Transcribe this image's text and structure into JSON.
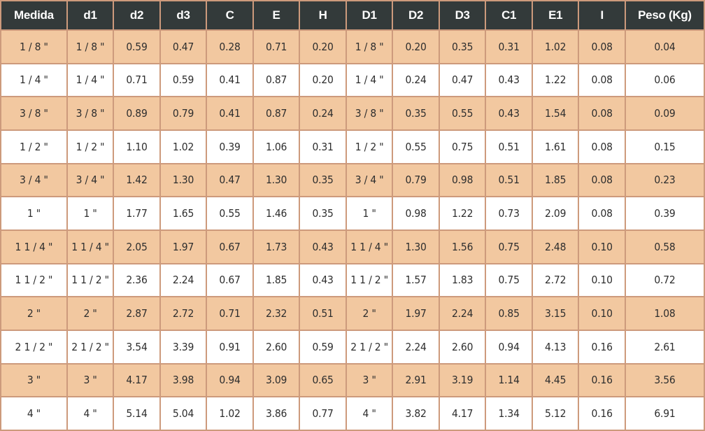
{
  "table": {
    "headers": [
      "Medida",
      "d1",
      "d2",
      "d3",
      "C",
      "E",
      "H",
      "D1",
      "D2",
      "D3",
      "C1",
      "E1",
      "I",
      "Peso (Kg)"
    ],
    "rows": [
      [
        "1 / 8 \"",
        "1 / 8 \"",
        "0.59",
        "0.47",
        "0.28",
        "0.71",
        "0.20",
        "1 / 8 \"",
        "0.20",
        "0.35",
        "0.31",
        "1.02",
        "0.08",
        "0.04"
      ],
      [
        "1 / 4 \"",
        "1 / 4 \"",
        "0.71",
        "0.59",
        "0.41",
        "0.87",
        "0.20",
        "1 / 4 \"",
        "0.24",
        "0.47",
        "0.43",
        "1.22",
        "0.08",
        "0.06"
      ],
      [
        "3 / 8 \"",
        "3 / 8 \"",
        "0.89",
        "0.79",
        "0.41",
        "0.87",
        "0.24",
        "3 / 8 \"",
        "0.35",
        "0.55",
        "0.43",
        "1.54",
        "0.08",
        "0.09"
      ],
      [
        "1 / 2 \"",
        "1 / 2 \"",
        "1.10",
        "1.02",
        "0.39",
        "1.06",
        "0.31",
        "1 / 2 \"",
        "0.55",
        "0.75",
        "0.51",
        "1.61",
        "0.08",
        "0.15"
      ],
      [
        "3 / 4 \"",
        "3 / 4 \"",
        "1.42",
        "1.30",
        "0.47",
        "1.30",
        "0.35",
        "3 / 4 \"",
        "0.79",
        "0.98",
        "0.51",
        "1.85",
        "0.08",
        "0.23"
      ],
      [
        "1 \"",
        "1 \"",
        "1.77",
        "1.65",
        "0.55",
        "1.46",
        "0.35",
        "1 \"",
        "0.98",
        "1.22",
        "0.73",
        "2.09",
        "0.08",
        "0.39"
      ],
      [
        "1 1 / 4 \"",
        "1 1 / 4 \"",
        "2.05",
        "1.97",
        "0.67",
        "1.73",
        "0.43",
        "1 1 / 4 \"",
        "1.30",
        "1.56",
        "0.75",
        "2.48",
        "0.10",
        "0.58"
      ],
      [
        "1 1 / 2 \"",
        "1 1 / 2 \"",
        "2.36",
        "2.24",
        "0.67",
        "1.85",
        "0.43",
        "1 1 / 2 \"",
        "1.57",
        "1.83",
        "0.75",
        "2.72",
        "0.10",
        "0.72"
      ],
      [
        "2 \"",
        "2 \"",
        "2.87",
        "2.72",
        "0.71",
        "2.32",
        "0.51",
        "2 \"",
        "1.97",
        "2.24",
        "0.85",
        "3.15",
        "0.10",
        "1.08"
      ],
      [
        "2 1 / 2 \"",
        "2 1 / 2 \"",
        "3.54",
        "3.39",
        "0.91",
        "2.60",
        "0.59",
        "2 1 / 2 \"",
        "2.24",
        "2.60",
        "0.94",
        "4.13",
        "0.16",
        "2.61"
      ],
      [
        "3 \"",
        "3 \"",
        "4.17",
        "3.98",
        "0.94",
        "3.09",
        "0.65",
        "3 \"",
        "2.91",
        "3.19",
        "1.14",
        "4.45",
        "0.16",
        "3.56"
      ],
      [
        "4 \"",
        "4 \"",
        "5.14",
        "5.04",
        "1.02",
        "3.86",
        "0.77",
        "4 \"",
        "3.82",
        "4.17",
        "1.34",
        "5.12",
        "0.16",
        "6.91"
      ]
    ]
  },
  "colors": {
    "header_bg": "#333a3a",
    "header_text": "#ffffff",
    "row_odd_bg": "#f2c8a0",
    "row_even_bg": "#ffffff",
    "border": "#cd9a7c"
  }
}
